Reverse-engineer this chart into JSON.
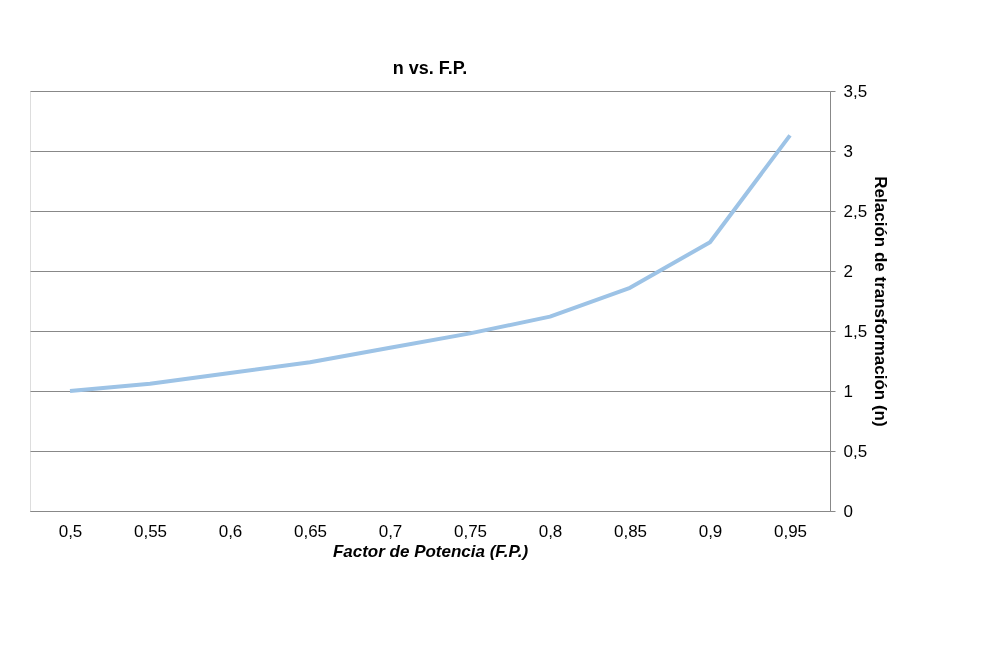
{
  "chart_data": {
    "type": "line",
    "title": "n vs. F.P.",
    "xlabel": "Factor de Potencia (F.P.)",
    "ylabel": "Relación de transformación (n)",
    "categories": [
      "0,5",
      "0,55",
      "0,6",
      "0,65",
      "0,7",
      "0,75",
      "0,8",
      "0,85",
      "0,9",
      "0,95"
    ],
    "series": [
      {
        "color": "#9dc3e6",
        "values": [
          1.0,
          1.06,
          1.15,
          1.24,
          1.36,
          1.48,
          1.62,
          1.86,
          2.24,
          3.13
        ]
      }
    ],
    "ylim": [
      0,
      3.5
    ],
    "yticks": [
      0,
      {
        "value": 0.5,
        "label": "0,5"
      },
      1,
      {
        "value": 1.5,
        "label": "1,5"
      },
      2,
      {
        "value": 2.5,
        "label": "2,5"
      },
      3,
      {
        "value": 3.5,
        "label": "3,5"
      }
    ],
    "grid": "y",
    "legend": false,
    "marker": "none",
    "line_style": "solid"
  }
}
